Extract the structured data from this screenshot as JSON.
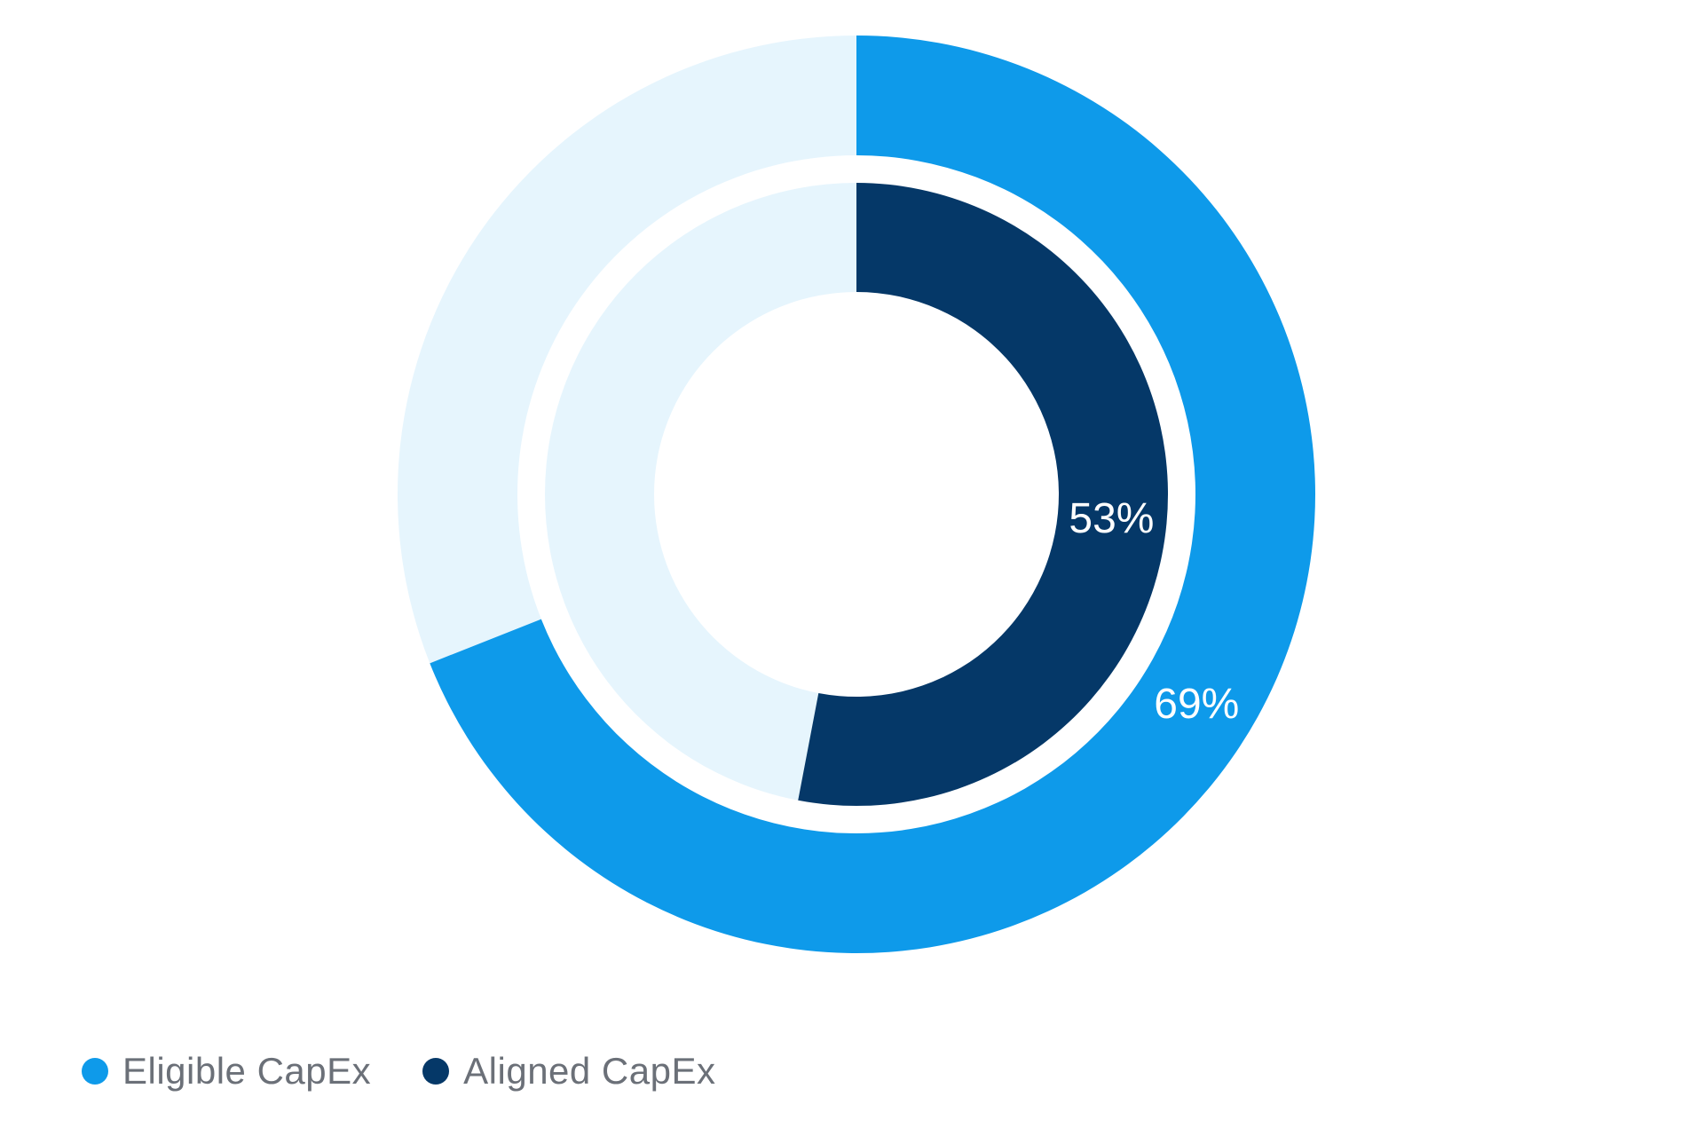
{
  "chart_data": {
    "type": "pie",
    "series": [
      {
        "name": "Eligible CapEx",
        "value": 69,
        "label": "69%",
        "color": "#0e9aea",
        "remainder_color": "#e6f5fd"
      },
      {
        "name": "Aligned CapEx",
        "value": 53,
        "label": "53%",
        "color": "#053868",
        "remainder_color": "#e6f5fd"
      }
    ],
    "legend_position": "bottom-left"
  }
}
